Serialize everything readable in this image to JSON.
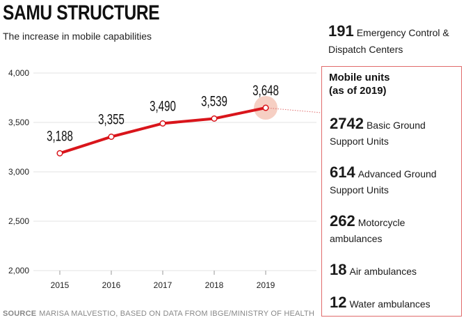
{
  "header": {
    "title": "SAMU STRUCTURE",
    "subtitle": "The increase in mobile capabilities"
  },
  "source": {
    "key": "SOURCE",
    "text": "MARISA MALVESTIO, BASED ON DATA FROM IBGE/MINISTRY OF HEALTH"
  },
  "centers": {
    "value": "191",
    "label": "Emergency Control & Dispatch Centers"
  },
  "mobile_units": {
    "heading_line1": "Mobile units",
    "heading_line2": "(as of 2019)",
    "items": [
      {
        "value": "2742",
        "label": "Basic Ground Support Units"
      },
      {
        "value": "614",
        "label": "Advanced Ground Support Units"
      },
      {
        "value": "262",
        "label": "Motorcycle ambulances"
      },
      {
        "value": "18",
        "label": "Air ambulances"
      },
      {
        "value": "12",
        "label": "Water ambulances"
      }
    ]
  },
  "colors": {
    "line": "#d9151b",
    "grid": "#e3e3e3",
    "highlight": "#f4c7b8",
    "box_border": "#e06a6a"
  },
  "chart_data": {
    "type": "line",
    "title": "SAMU STRUCTURE",
    "subtitle": "The increase in mobile capabilities",
    "x": [
      "2015",
      "2016",
      "2017",
      "2018",
      "2019"
    ],
    "series": [
      {
        "values": [
          3188,
          3355,
          3490,
          3539,
          3648
        ]
      }
    ],
    "data_labels": [
      "3,188",
      "3,355",
      "3,490",
      "3,539",
      "3,648"
    ],
    "yticks": [
      2000,
      2500,
      3000,
      3500,
      4000
    ],
    "ytick_labels": [
      "2,000",
      "2,500",
      "3,000",
      "3,500",
      "4,000"
    ],
    "ylim": [
      2000,
      4000
    ],
    "grid": true,
    "highlight_point": "2019"
  }
}
